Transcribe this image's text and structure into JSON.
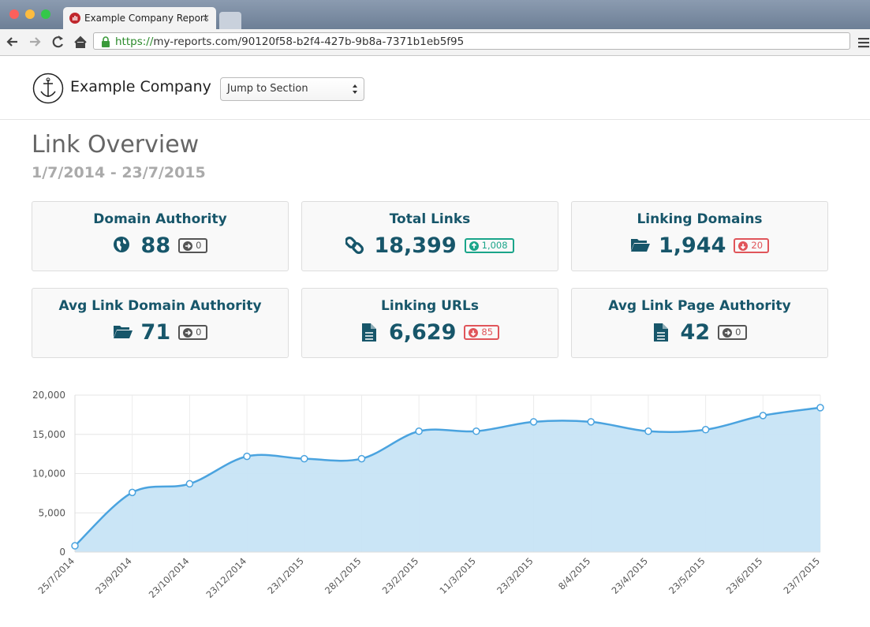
{
  "browser": {
    "tab_title": "Example Company Report",
    "url_scheme": "https://",
    "url_rest": "my-reports.com/90120f58-b2f4-427b-9b8a-7371b1eb5f95"
  },
  "header": {
    "company": "Example Company",
    "jump_select": "Jump to Section"
  },
  "page": {
    "title": "Link Overview",
    "date_range": "1/7/2014 - 23/7/2015"
  },
  "cards": [
    {
      "title": "Domain Authority",
      "value": "88",
      "change": "0",
      "trend": "neutral"
    },
    {
      "title": "Total Links",
      "value": "18,399",
      "change": "1,008",
      "trend": "up"
    },
    {
      "title": "Linking Domains",
      "value": "1,944",
      "change": "20",
      "trend": "down"
    },
    {
      "title": "Avg Link Domain Authority",
      "value": "71",
      "change": "0",
      "trend": "neutral"
    },
    {
      "title": "Linking URLs",
      "value": "6,629",
      "change": "85",
      "trend": "down"
    },
    {
      "title": "Avg Link Page Authority",
      "value": "42",
      "change": "0",
      "trend": "neutral"
    }
  ],
  "chart_data": {
    "type": "area",
    "categories": [
      "25/7/2014",
      "23/9/2014",
      "23/10/2014",
      "23/12/2014",
      "23/1/2015",
      "28/1/2015",
      "23/2/2015",
      "11/3/2015",
      "23/3/2015",
      "8/4/2015",
      "23/4/2015",
      "23/5/2015",
      "23/6/2015",
      "23/7/2015"
    ],
    "values": [
      800,
      7600,
      8700,
      12200,
      11900,
      11900,
      15400,
      15400,
      16600,
      16600,
      15400,
      15600,
      17400,
      18400
    ],
    "color": "#4aa3df",
    "fill_color": "#c7e4f6",
    "ylim": [
      0,
      20000
    ],
    "yticks": [
      0,
      {
        "value": 5000,
        "label": "5,000"
      },
      {
        "value": 10000,
        "label": "10,000"
      },
      {
        "value": 15000,
        "label": "15,000"
      },
      {
        "value": 20000,
        "label": "20,000"
      }
    ],
    "grid": true
  }
}
